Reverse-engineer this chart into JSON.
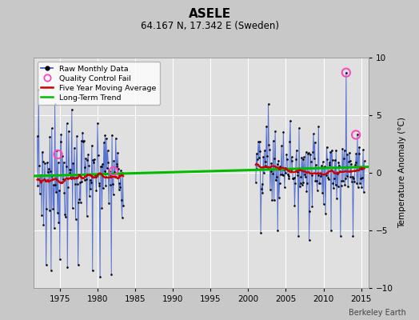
{
  "title": "ASELE",
  "subtitle": "64.167 N, 17.342 E (Sweden)",
  "ylabel": "Temperature Anomaly (°C)",
  "xlabel_label": "Berkeley Earth",
  "xlim": [
    1971.5,
    2016.0
  ],
  "ylim": [
    -10,
    10
  ],
  "yticks": [
    -10,
    -5,
    0,
    5,
    10
  ],
  "xticks": [
    1975,
    1980,
    1985,
    1990,
    1995,
    2000,
    2005,
    2010,
    2015
  ],
  "bg_color": "#c8c8c8",
  "plot_bg_color": "#e0e0e0",
  "grid_color": "#ffffff",
  "data_color": "#4060cc",
  "dot_color": "#000000",
  "ma_color": "#cc0000",
  "trend_color": "#00bb00",
  "qc_color": "#ff44bb",
  "segment1_start": 1972.0,
  "segment1_end": 1983.5,
  "segment2_start": 2001.0,
  "segment2_end": 2015.5,
  "trend_x": [
    1971.5,
    2016.0
  ],
  "trend_y": [
    -0.28,
    0.52
  ],
  "seed": 99,
  "qc_points": [
    [
      1974.75,
      1.6
    ],
    [
      1982.1,
      0.15
    ],
    [
      2013.0,
      8.7
    ],
    [
      2014.3,
      3.3
    ]
  ]
}
